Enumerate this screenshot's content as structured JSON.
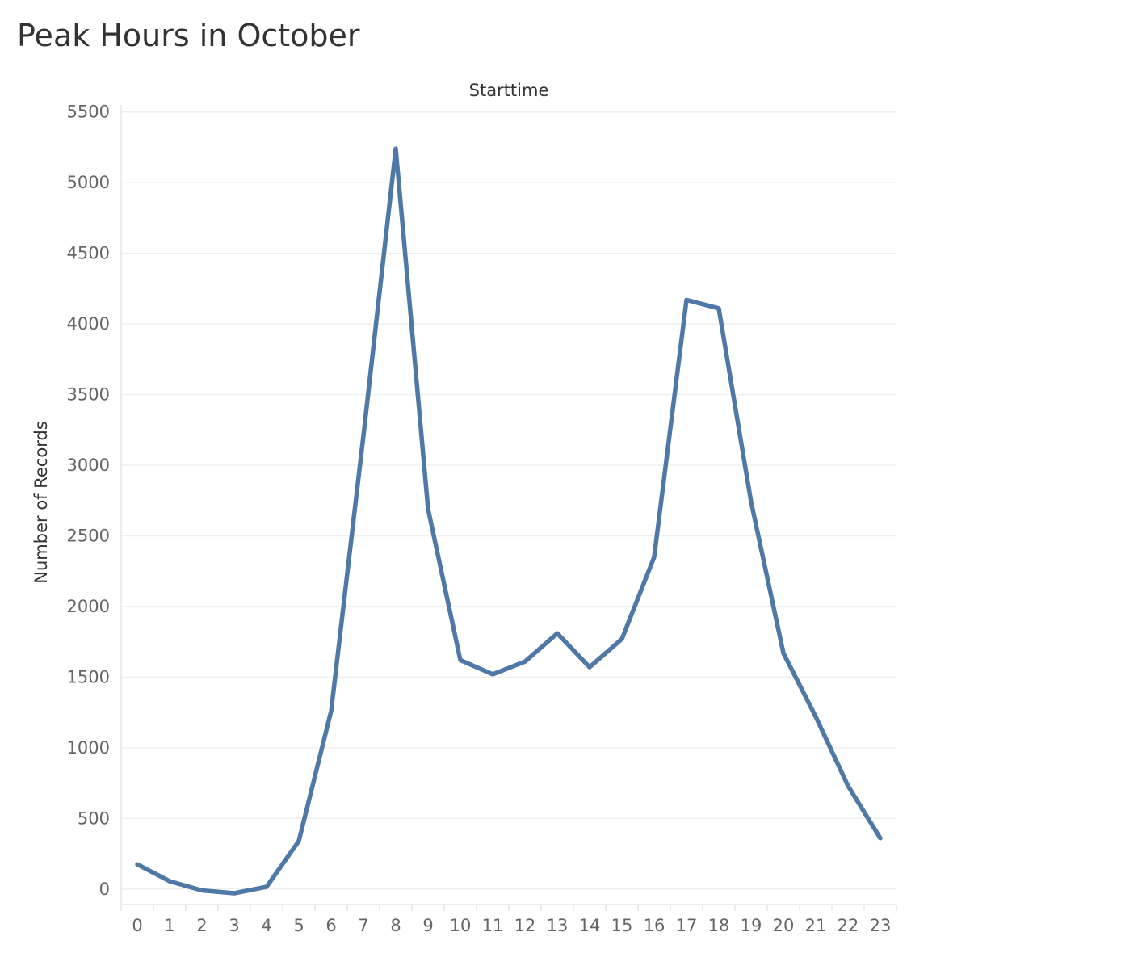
{
  "title": "Peak Hours in October",
  "chart_data": {
    "type": "line",
    "title": "Peak Hours in October",
    "column_header": "Starttime",
    "xlabel": "",
    "ylabel": "Number of Records",
    "x": [
      0,
      1,
      2,
      3,
      4,
      5,
      6,
      7,
      8,
      9,
      10,
      11,
      12,
      13,
      14,
      15,
      16,
      17,
      18,
      19,
      20,
      21,
      22,
      23
    ],
    "x_tick_labels": [
      "0",
      "1",
      "2",
      "3",
      "4",
      "5",
      "6",
      "7",
      "8",
      "9",
      "10",
      "11",
      "12",
      "13",
      "14",
      "15",
      "16",
      "17",
      "18",
      "19",
      "20",
      "21",
      "22",
      "23"
    ],
    "series": [
      {
        "values": [
          175,
          55,
          -10,
          -30,
          15,
          340,
          1260,
          3210,
          5240,
          2690,
          1620,
          1520,
          1610,
          1810,
          1570,
          1770,
          2350,
          4170,
          4110,
          2740,
          1670,
          1220,
          730,
          360
        ]
      }
    ],
    "ylim": [
      -110,
      5550
    ],
    "y_ticks": [
      0,
      500,
      1000,
      1500,
      2000,
      2500,
      3000,
      3500,
      4000,
      4500,
      5000,
      5500
    ],
    "y_tick_labels": [
      "0",
      "500",
      "1000",
      "1500",
      "2000",
      "2500",
      "3000",
      "3500",
      "4000",
      "4500",
      "5000",
      "5500"
    ],
    "grid": true,
    "legend": "none",
    "colors": {
      "line": "#4e79a7",
      "grid": "#efefef",
      "axis": "#e6e6e6"
    }
  }
}
